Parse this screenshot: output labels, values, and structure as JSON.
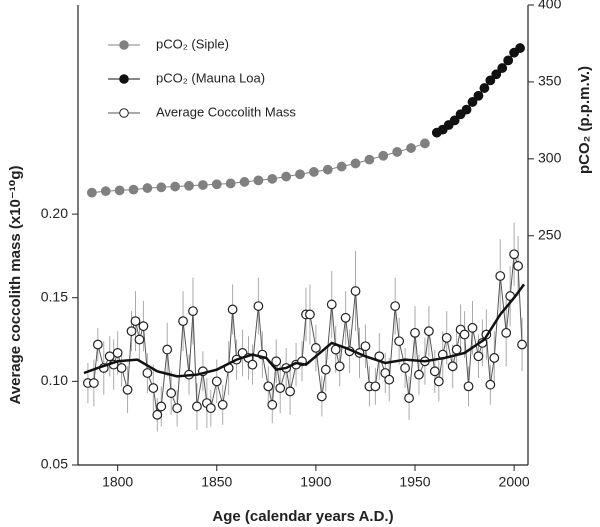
{
  "chart_data": {
    "type": "line",
    "x_label": "Age (calendar years A.D.)",
    "y_label": "Average coccolith mass (x10⁻¹⁰g)",
    "y2_label": "pCO₂ (p.p.m.v.)",
    "xlim": [
      1780,
      2007
    ],
    "xticks": [
      1800,
      1850,
      1900,
      1950,
      2000
    ],
    "ylim": [
      0.05,
      0.325
    ],
    "yticks": [
      0.05,
      {
        "value": 0.1,
        "label": "0.10"
      },
      0.15,
      {
        "value": 0.2,
        "label": "0.20"
      }
    ],
    "y2lim": [
      101,
      400
    ],
    "y2ticks": [
      250,
      300,
      350,
      400
    ],
    "series": [
      {
        "name": "pCO₂ (Siple)",
        "axis": "y2",
        "color": "#808080",
        "marker": "filled",
        "x": [
          1787,
          1794,
          1801,
          1808,
          1815,
          1822,
          1829,
          1836,
          1843,
          1850,
          1857,
          1864,
          1871,
          1878,
          1885,
          1892,
          1899,
          1906,
          1913,
          1920,
          1927,
          1934,
          1941,
          1948,
          1955
        ],
        "values": [
          278,
          279,
          279.5,
          280,
          281,
          281.5,
          282,
          282.5,
          283,
          283.5,
          284,
          285,
          286,
          287,
          288.5,
          290,
          291.5,
          293,
          295,
          297,
          299.5,
          302,
          304.5,
          307,
          310
        ]
      },
      {
        "name": "pCO₂ (Mauna Loa)",
        "axis": "y2",
        "color": "#111111",
        "marker": "filled",
        "x": [
          1961,
          1964,
          1967,
          1970,
          1973,
          1976,
          1979,
          1982,
          1985,
          1988,
          1991,
          1994,
          1997,
          2000,
          2003
        ],
        "values": [
          317,
          319,
          322,
          325,
          329,
          332,
          337,
          341,
          346,
          351,
          355,
          359,
          364,
          369,
          372
        ]
      },
      {
        "name": "Average Coccolith Mass",
        "axis": "y",
        "color": "#555555",
        "marker": "open",
        "x": [
          1785,
          1788,
          1790,
          1793,
          1796,
          1798,
          1800,
          1802,
          1805,
          1807,
          1809,
          1811,
          1813,
          1815,
          1818,
          1820,
          1822,
          1825,
          1827,
          1830,
          1833,
          1836,
          1838,
          1840,
          1843,
          1845,
          1847,
          1850,
          1853,
          1856,
          1858,
          1860,
          1863,
          1866,
          1868,
          1871,
          1873,
          1876,
          1878,
          1880,
          1882,
          1885,
          1887,
          1890,
          1893,
          1895,
          1897,
          1900,
          1903,
          1905,
          1908,
          1910,
          1912,
          1915,
          1917,
          1920,
          1922,
          1925,
          1927,
          1930,
          1932,
          1935,
          1937,
          1940,
          1942,
          1945,
          1947,
          1950,
          1952,
          1955,
          1957,
          1960,
          1962,
          1964,
          1966,
          1969,
          1971,
          1973,
          1975,
          1977,
          1979,
          1982,
          1984,
          1986,
          1988,
          1990,
          1993,
          1996,
          1998,
          2000,
          2002,
          2004
        ],
        "values": [
          0.099,
          0.099,
          0.122,
          0.108,
          0.115,
          0.11,
          0.117,
          0.108,
          0.095,
          0.13,
          0.136,
          0.125,
          0.133,
          0.105,
          0.096,
          0.08,
          0.085,
          0.119,
          0.093,
          0.084,
          0.136,
          0.104,
          0.142,
          0.085,
          0.106,
          0.087,
          0.084,
          0.1,
          0.086,
          0.108,
          0.143,
          0.113,
          0.117,
          0.114,
          0.11,
          0.145,
          0.116,
          0.097,
          0.086,
          0.112,
          0.096,
          0.108,
          0.094,
          0.11,
          0.112,
          0.14,
          0.14,
          0.12,
          0.091,
          0.107,
          0.146,
          0.119,
          0.109,
          0.138,
          0.118,
          0.154,
          0.117,
          0.121,
          0.097,
          0.097,
          0.115,
          0.105,
          0.101,
          0.145,
          0.124,
          0.108,
          0.09,
          0.129,
          0.104,
          0.112,
          0.13,
          0.106,
          0.1,
          0.116,
          0.126,
          0.109,
          0.119,
          0.131,
          0.128,
          0.097,
          0.132,
          0.115,
          0.123,
          0.128,
          0.098,
          0.114,
          0.163,
          0.129,
          0.151,
          0.176,
          0.169,
          0.122
        ],
        "errors": [
          0.012,
          0.014,
          0.01,
          0.016,
          0.012,
          0.015,
          0.013,
          0.011,
          0.014,
          0.012,
          0.018,
          0.013,
          0.015,
          0.012,
          0.014,
          0.01,
          0.012,
          0.016,
          0.013,
          0.011,
          0.018,
          0.012,
          0.02,
          0.014,
          0.012,
          0.015,
          0.011,
          0.013,
          0.012,
          0.016,
          0.015,
          0.012,
          0.014,
          0.013,
          0.012,
          0.017,
          0.014,
          0.012,
          0.011,
          0.013,
          0.015,
          0.012,
          0.014,
          0.013,
          0.012,
          0.016,
          0.018,
          0.014,
          0.012,
          0.013,
          0.02,
          0.014,
          0.012,
          0.016,
          0.013,
          0.024,
          0.015,
          0.013,
          0.012,
          0.011,
          0.014,
          0.012,
          0.013,
          0.017,
          0.014,
          0.012,
          0.013,
          0.016,
          0.012,
          0.014,
          0.015,
          0.013,
          0.012,
          0.014,
          0.016,
          0.013,
          0.012,
          0.015,
          0.014,
          0.012,
          0.016,
          0.013,
          0.014,
          0.015,
          0.012,
          0.016,
          0.022,
          0.02,
          0.018,
          0.019,
          0.018,
          0.016
        ]
      },
      {
        "name": "Smoothed coccolith mass",
        "axis": "y",
        "color": "#111111",
        "marker": "none",
        "legend": false,
        "x": [
          1783,
          1790,
          1800,
          1810,
          1820,
          1830,
          1840,
          1850,
          1860,
          1868,
          1875,
          1880,
          1885,
          1890,
          1895,
          1900,
          1908,
          1915,
          1925,
          1935,
          1945,
          1955,
          1965,
          1975,
          1985,
          1993,
          2000,
          2005
        ],
        "values": [
          0.105,
          0.108,
          0.112,
          0.113,
          0.106,
          0.103,
          0.104,
          0.107,
          0.113,
          0.116,
          0.114,
          0.107,
          0.108,
          0.111,
          0.11,
          0.115,
          0.123,
          0.12,
          0.115,
          0.111,
          0.113,
          0.112,
          0.114,
          0.117,
          0.125,
          0.14,
          0.15,
          0.158
        ]
      }
    ]
  }
}
